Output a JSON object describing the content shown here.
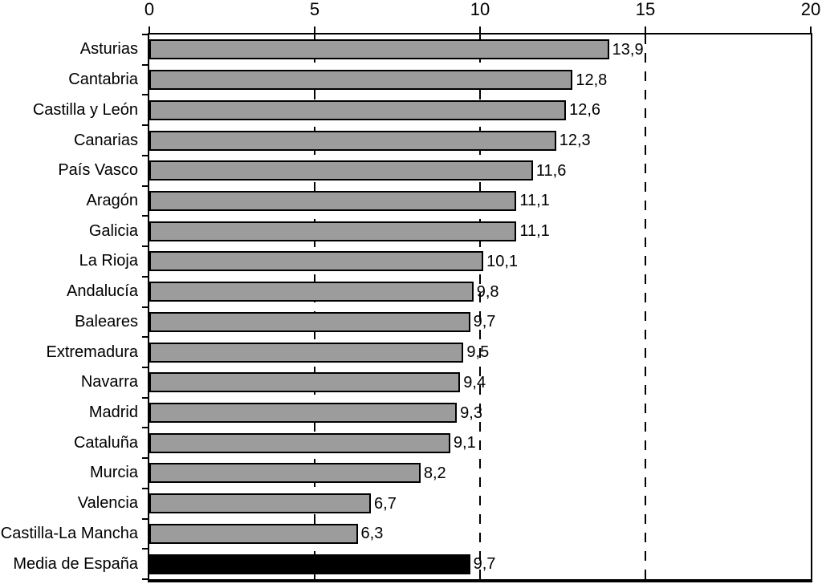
{
  "chart_data": {
    "type": "bar",
    "orientation": "horizontal",
    "title": "",
    "xlabel": "",
    "ylabel": "",
    "xlim": [
      0,
      20
    ],
    "x_ticks": [
      0,
      5,
      10,
      15,
      20
    ],
    "x_tick_labels": [
      "0",
      "5",
      "10",
      "15",
      "20"
    ],
    "gridlines": [
      5,
      10,
      15
    ],
    "grid_style": "dashed-vertical",
    "legend": "none",
    "categories": [
      "Asturias",
      "Cantabria",
      "Castilla y León",
      "Canarias",
      "País Vasco",
      "Aragón",
      "Galicia",
      "La Rioja",
      "Andalucía",
      "Baleares",
      "Extremadura",
      "Navarra",
      "Madrid",
      "Cataluña",
      "Murcia",
      "Valencia",
      "Castilla-La Mancha",
      "Media de España"
    ],
    "values": [
      13.9,
      12.8,
      12.6,
      12.3,
      11.6,
      11.1,
      11.1,
      10.1,
      9.8,
      9.7,
      9.5,
      9.4,
      9.3,
      9.1,
      8.2,
      6.7,
      6.3,
      9.7
    ],
    "value_labels": [
      "13,9",
      "12,8",
      "12,6",
      "12,3",
      "11,6",
      "11,1",
      "11,1",
      "10,1",
      "9,8",
      "9,7",
      "9,5",
      "9,4",
      "9,3",
      "9,1",
      "8,2",
      "6,7",
      "6,3",
      "9,7"
    ],
    "highlight_index": 17,
    "colors": {
      "bar_fill": "#9c9c9c",
      "bar_border": "#000000",
      "highlight_fill": "#000000",
      "axis": "#000000",
      "background": "#ffffff",
      "text": "#000000"
    }
  }
}
